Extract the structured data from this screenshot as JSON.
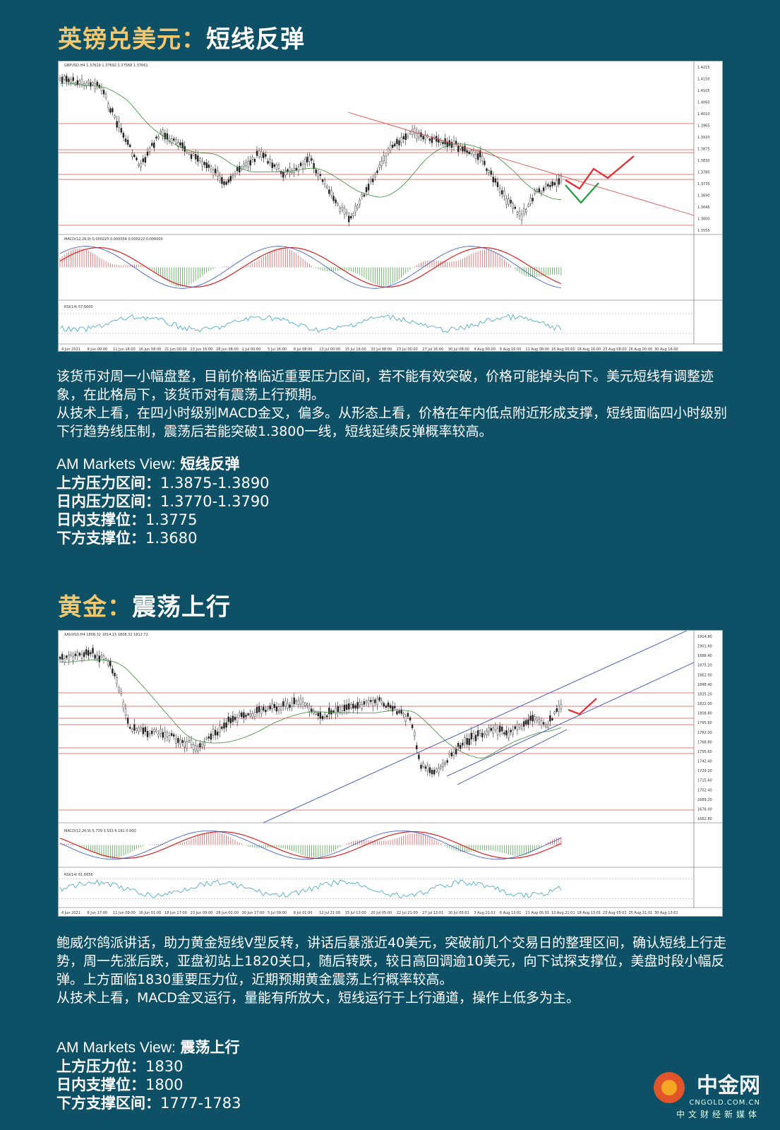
{
  "gbp": {
    "title_pair": "英镑兑美元",
    "title_sep": "：",
    "title_view": "短线反弹",
    "chart_header": "GBPUSD,H4  1.37619 1.37692 1.37568 1.37661",
    "macd_label": "MACD(12,26,9) 0.000225 0.000054 0.000222 0.000000",
    "rsi_label": "RSI(14) 57.6600",
    "x_ticks": [
      "4 Jun 2021",
      "9 Jun 00:00",
      "11 Jun 16:00",
      "16 Jun 08:00",
      "21 Jun 00:00",
      "23 Jun 16:00",
      "28 Jun 08:00",
      "1 Jul 00:00",
      "5 Jul 16:00",
      "8 Jul 08:00",
      "13 Jul 00:00",
      "15 Jul 16:00",
      "20 Jul 08:00",
      "23 Jul 00:00",
      "27 Jul 16:00",
      "30 Jul 08:00",
      "4 Aug 00:00",
      "6 Aug 16:00",
      "11 Aug 08:00",
      "16 Aug 00:00",
      "18 Aug 16:00",
      "23 Aug 08:00",
      "26 Aug 00:00",
      "30 Aug 16:00"
    ],
    "y_ticks": [
      "1.4215",
      "1.4150",
      "1.4105",
      "1.4060",
      "1.4010",
      "1.3965",
      "1.3920",
      "1.3875",
      "1.3830",
      "1.3780",
      "1.3735",
      "1.3690",
      "1.3645",
      "1.3600",
      "1.3555"
    ],
    "paragraphs": [
      "该货币对周一小幅盘整，目前价格临近重要压力区间，若不能有效突破，价格可能掉头向下。美元短线有调整迹象，在此格局下，该货币对有震荡上行预期。",
      "从技术上看，在四小时级别MACD金叉，偏多。从形态上看，价格在年内低点附近形成支撑，短线面临四小时级别下行趋势线压制，震荡后若能突破1.3800一线，短线延续反弹概率较高。"
    ],
    "view_lead": "AM Markets View:",
    "view_value": "短线反弹",
    "levels": [
      {
        "label": "上方压力区间：",
        "value": "1.3875-1.3890"
      },
      {
        "label": "日内压力区间：",
        "value": "1.3770-1.3790"
      },
      {
        "label": "日内支撑位：",
        "value": "1.3775"
      },
      {
        "label": "下方支撑位：",
        "value": "1.3680"
      }
    ]
  },
  "gold": {
    "title_pair": "黄金",
    "title_sep": "：",
    "title_view": "震荡上行",
    "chart_header": "XAUUSD,H4  1808.32 1814.15 1808.32 1812.72",
    "macd_label": "MACD(12,26,9) 5.739 3.533 6.181 0.000",
    "rsi_label": "RSI(14) 61.6656",
    "x_ticks": [
      "4 Jun 2021",
      "8 Jun 17:00",
      "11 Jun 09:00",
      "16 Jun 01:00",
      "18 Jun 17:00",
      "23 Jun 09:00",
      "28 Jun 01:00",
      "30 Jun 17:00",
      "5 Jul 09:00",
      "8 Jul 01:00",
      "12 Jul 21:00",
      "15 Jul 13:00",
      "20 Jul 05:00",
      "22 Jul 21:00",
      "27 Jul 13:01",
      "30 Jul 05:01",
      "3 Aug 21:01",
      "6 Aug 13:01",
      "11 Aug 05:01",
      "13 Aug 21:01",
      "18 Aug 13:01",
      "23 Aug 05:01",
      "25 Aug 21:01",
      "30 Aug 13:01"
    ],
    "y_ticks": [
      "1914.80",
      "1901.60",
      "1888.40",
      "1875.20",
      "1862.00",
      "1848.40",
      "1835.20",
      "1822.00",
      "1808.80",
      "1795.60",
      "1782.00",
      "1768.80",
      "1755.60",
      "1742.40",
      "1729.20",
      "1715.60",
      "1702.40",
      "1689.20",
      "1676.00",
      "1662.80"
    ],
    "paragraphs": [
      "鲍威尔鸽派讲话，助力黄金短线V型反转，讲话后暴涨近40美元，突破前几个交易日的整理区间，确认短线上行走势，周一先涨后跌，亚盘初站上1820关口，随后转跌，较日高回调逾10美元，向下试探支撑位，美盘时段小幅反弹。上方面临1830重要压力位，近期预期黄金震荡上行概率较高。",
      "从技术上看，MACD金叉运行，量能有所放大，短线运行于上行通道，操作上低多为主。"
    ],
    "view_lead": "AM Markets View:",
    "view_value": "震荡上行",
    "levels": [
      {
        "label": "上方压力位：",
        "value": "1830"
      },
      {
        "label": "日内支撑位：",
        "value": "1800"
      },
      {
        "label": "下方支撑区间：",
        "value": "1777-1783"
      }
    ]
  },
  "watermark": {
    "name": "中金网",
    "site": "CNGOLD.COM.CN",
    "tagline": "中文财经新媒体"
  },
  "colors": {
    "background": "#0e5066",
    "title_gold": "#f3c76d",
    "up_arrow": "#e8262b",
    "down_arrow": "#1e9e3a"
  }
}
